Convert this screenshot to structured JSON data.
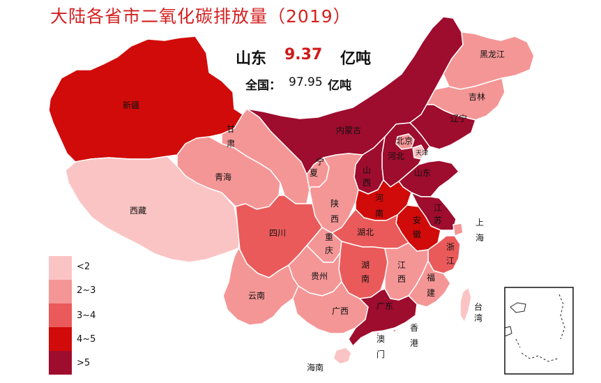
{
  "title": "大陆各省市二氧化碳排放量（2019）",
  "highlight": {
    "province": "山东",
    "value": "9.37",
    "unit": "亿吨"
  },
  "national": {
    "label": "全国：",
    "value": "97.95",
    "unit": "亿吨"
  },
  "colors": {
    "lt2": "#fbc4c4",
    "c2_3": "#f59696",
    "c3_4": "#ea5a5a",
    "c4_5": "#d10a0a",
    "gt5": "#9e0c2e",
    "border": "#ffffff"
  },
  "legend": [
    {
      "label": "<2",
      "color": "#fbc4c4"
    },
    {
      "label": "2~3",
      "color": "#f59696"
    },
    {
      "label": "3~4",
      "color": "#ea5a5a"
    },
    {
      "label": "4~5",
      "color": "#d10a0a"
    },
    {
      "label": ">5",
      "color": "#9e0c2e"
    }
  ],
  "regions": {
    "xinjiang": "新疆",
    "xizang": "西藏",
    "qinghai": "青海",
    "gansu_1": "甘",
    "gansu_2": "肃",
    "neimenggu": "内蒙古",
    "heilongjiang": "黑龙江",
    "jilin": "吉林",
    "liaoning": "辽宁",
    "beijing": "北京",
    "tianjin": "天津",
    "hebei": "河北",
    "shanxi_1": "山",
    "shanxi_2": "西",
    "shandong": "山东",
    "ningxia_1": "宁",
    "ningxia_2": "夏",
    "shaanxi_1": "陕",
    "shaanxi_2": "西",
    "henan_1": "河",
    "henan_2": "南",
    "jiangsu_1": "江",
    "jiangsu_2": "苏",
    "shanghai_1": "上",
    "shanghai_2": "海",
    "anhui_1": "安",
    "anhui_2": "徽",
    "hubei": "湖北",
    "sichuan": "四川",
    "chongqing_1": "重",
    "chongqing_2": "庆",
    "zhejiang_1": "浙",
    "zhejiang_2": "江",
    "hunan_1": "湖",
    "hunan_2": "南",
    "jiangxi_1": "江",
    "jiangxi_2": "西",
    "guizhou": "贵州",
    "fujian_1": "福",
    "fujian_2": "建",
    "yunnan": "云南",
    "guangxi": "广西",
    "guangdong": "广东",
    "taiwan_1": "台",
    "taiwan_2": "湾",
    "xianggang_1": "香",
    "xianggang_2": "港",
    "aomen_1": "澳",
    "aomen_2": "门",
    "hainan": "海南"
  }
}
